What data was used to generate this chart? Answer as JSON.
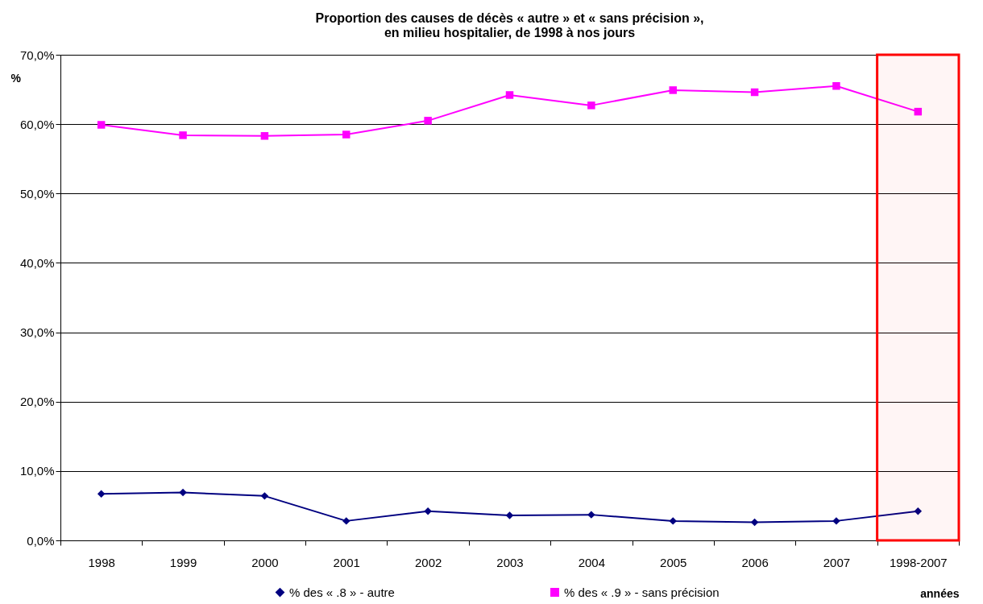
{
  "chart_data": {
    "type": "line",
    "title": [
      "Proportion des causes de décès « autre » et « sans précision »,",
      "en milieu hospitalier, de 1998 à nos jours"
    ],
    "xlabel": "années",
    "ylabel": "%",
    "categories": [
      "1998",
      "1999",
      "2000",
      "2001",
      "2002",
      "2003",
      "2004",
      "2005",
      "2006",
      "2007",
      "1998-2007"
    ],
    "series": [
      {
        "name": "% des « .8 » - autre",
        "color": "#000080",
        "marker": "diamond",
        "values": [
          6.7,
          6.9,
          6.4,
          2.8,
          4.2,
          3.6,
          3.7,
          2.8,
          2.6,
          2.8,
          4.2
        ]
      },
      {
        "name": "% des « .9 » - sans précision",
        "color": "#ff00ff",
        "marker": "square",
        "values": [
          59.9,
          58.4,
          58.3,
          58.5,
          60.5,
          64.2,
          62.7,
          64.9,
          64.6,
          65.5,
          61.8
        ]
      }
    ],
    "ylim": [
      0,
      70
    ],
    "yticks": [
      {
        "value": 0,
        "label": "0,0%"
      },
      {
        "value": 10,
        "label": "10,0%"
      },
      {
        "value": 20,
        "label": "20,0%"
      },
      {
        "value": 30,
        "label": "30,0%"
      },
      {
        "value": 40,
        "label": "40,0%"
      },
      {
        "value": 50,
        "label": "50,0%"
      },
      {
        "value": 60,
        "label": "60,0%"
      },
      {
        "value": 70,
        "label": "70,0%"
      }
    ],
    "bands": [
      {
        "axis": "x",
        "from": "1998-2007",
        "to": "1998-2007",
        "color": "#ff0000"
      }
    ],
    "grid": "y",
    "legend": "bottom",
    "line_style": "solid"
  }
}
